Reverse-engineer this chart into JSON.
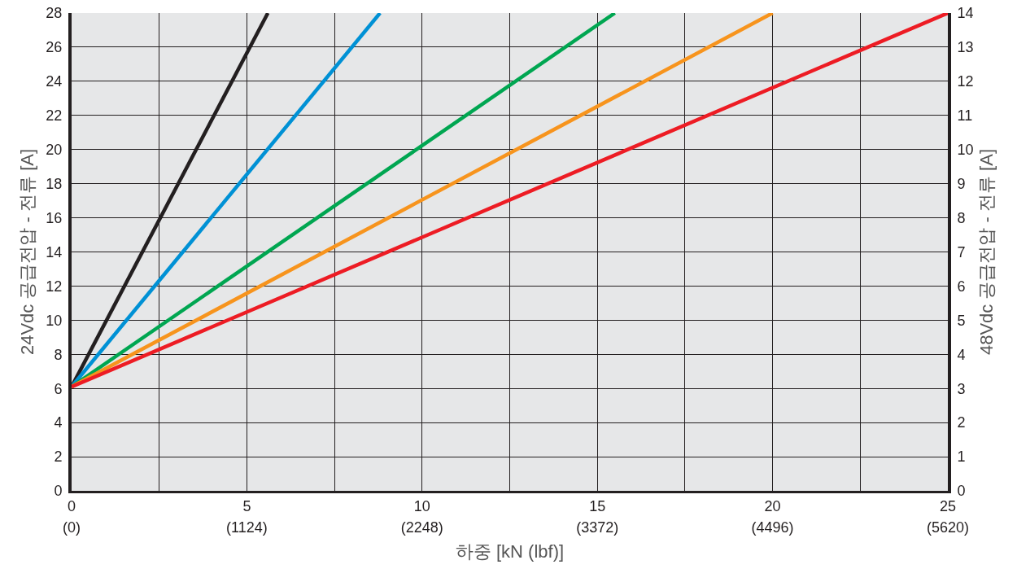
{
  "chart_data": {
    "type": "line",
    "xlabel": "하중 [kN (lbf)]",
    "ylabel": "24Vdc 공급전압 - 전류 [A]",
    "y2label": "48Vdc 공급전압 - 전류 [A]",
    "series": [
      {
        "color": "#231f20",
        "x": [
          0,
          5.6
        ],
        "values": [
          6.1,
          28
        ]
      },
      {
        "color": "#0091d5",
        "x": [
          0,
          8.8
        ],
        "values": [
          6.1,
          28
        ]
      },
      {
        "color": "#00a651",
        "x": [
          0,
          15.5
        ],
        "values": [
          6.1,
          28
        ]
      },
      {
        "color": "#f7941d",
        "x": [
          0,
          20
        ],
        "values": [
          6.1,
          28
        ]
      },
      {
        "color": "#ed1c24",
        "x": [
          0,
          25
        ],
        "values": [
          6.1,
          28
        ]
      }
    ],
    "xlim": [
      0,
      25
    ],
    "xticks": [
      0,
      {
        "value": 2.5,
        "label": null
      },
      5,
      {
        "value": 7.5,
        "label": null
      },
      10,
      {
        "value": 12.5,
        "label": null
      },
      15,
      {
        "value": 17.5,
        "label": null
      },
      20,
      {
        "value": 22.5,
        "label": null
      },
      25
    ],
    "x2lim": [
      0,
      5620
    ],
    "x2ticks": [
      {
        "value": 0,
        "label": "(0)"
      },
      {
        "value": 1124,
        "label": "(1124)"
      },
      {
        "value": 2248,
        "label": "(2248)"
      },
      {
        "value": 3372,
        "label": "(3372)"
      },
      {
        "value": 4496,
        "label": "(4496)"
      },
      {
        "value": 5620,
        "label": "(5620)"
      }
    ],
    "ylim": [
      0,
      28
    ],
    "yticks": [
      0,
      2,
      4,
      6,
      8,
      10,
      12,
      14,
      16,
      18,
      20,
      22,
      24,
      26,
      28
    ],
    "y2lim": [
      0,
      14
    ],
    "y2ticks": [
      0,
      1,
      2,
      3,
      4,
      5,
      6,
      7,
      8,
      9,
      10,
      11,
      12,
      13,
      14
    ],
    "grid": true,
    "marker": "none",
    "line_style": "solid"
  }
}
